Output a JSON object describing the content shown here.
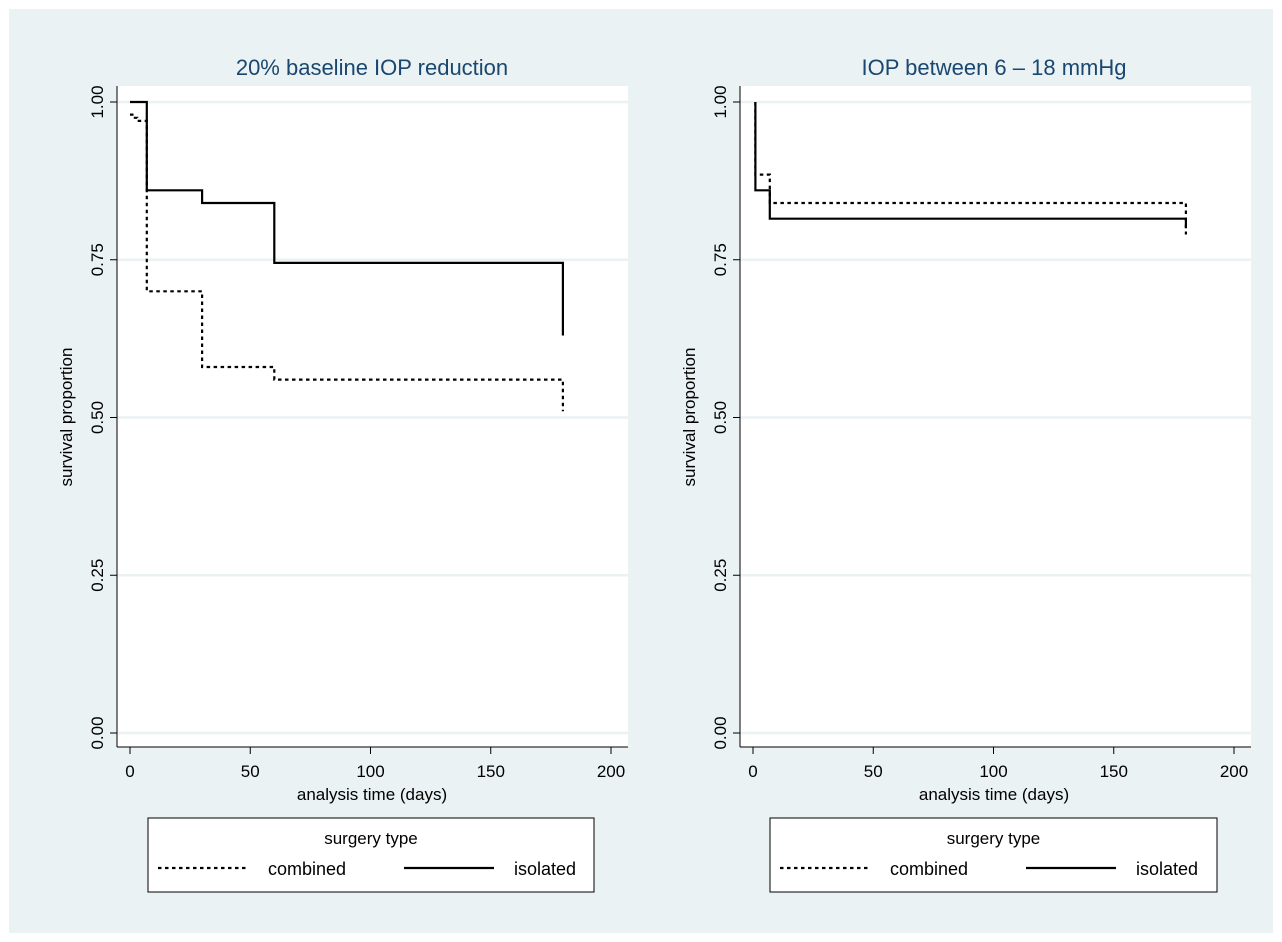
{
  "chart_data": [
    {
      "type": "line",
      "title": "20% baseline IOP reduction",
      "xlabel": "analysis time (days)",
      "ylabel": "survival proportion",
      "xlim": [
        0,
        200
      ],
      "ylim": [
        0,
        1
      ],
      "xticks": [
        0,
        50,
        100,
        150,
        200
      ],
      "yticks": [
        0,
        0.25,
        0.5,
        0.75,
        1
      ],
      "ytick_labels": [
        "0.00",
        "0.25",
        "0.50",
        "0.75",
        "1.00"
      ],
      "grid": true,
      "step": true,
      "legend": {
        "title": "surgery type",
        "position": "bottom"
      },
      "series": [
        {
          "name": "combined",
          "line_style": "dotted",
          "x": [
            0,
            1,
            1,
            3,
            3,
            7,
            7,
            30,
            30,
            60,
            60,
            180,
            180
          ],
          "y": [
            0.98,
            0.98,
            0.975,
            0.975,
            0.97,
            0.97,
            0.7,
            0.7,
            0.58,
            0.58,
            0.56,
            0.56,
            0.51
          ]
        },
        {
          "name": "isolated",
          "line_style": "solid",
          "x": [
            0,
            7,
            7,
            30,
            30,
            60,
            60,
            180,
            180
          ],
          "y": [
            1.0,
            1.0,
            0.86,
            0.86,
            0.84,
            0.84,
            0.745,
            0.745,
            0.63
          ]
        }
      ]
    },
    {
      "type": "line",
      "title": "IOP between 6 – 18 mmHg",
      "xlabel": "analysis time (days)",
      "ylabel": "survival proportion",
      "xlim": [
        0,
        200
      ],
      "ylim": [
        0,
        1
      ],
      "xticks": [
        0,
        50,
        100,
        150,
        200
      ],
      "yticks": [
        0,
        0.25,
        0.5,
        0.75,
        1
      ],
      "ytick_labels": [
        "0.00",
        "0.25",
        "0.50",
        "0.75",
        "1.00"
      ],
      "grid": true,
      "step": true,
      "legend": {
        "title": "surgery type",
        "position": "bottom"
      },
      "series": [
        {
          "name": "combined",
          "line_style": "dotted",
          "x": [
            1,
            1,
            7,
            7,
            180,
            180
          ],
          "y": [
            1.0,
            0.885,
            0.885,
            0.84,
            0.84,
            0.79
          ]
        },
        {
          "name": "isolated",
          "line_style": "solid",
          "x": [
            1,
            1,
            7,
            7,
            180,
            180
          ],
          "y": [
            1.0,
            0.86,
            0.86,
            0.815,
            0.815,
            0.8
          ]
        }
      ]
    }
  ],
  "colors": {
    "background": "#eaf2f3",
    "plot_background": "#ffffff",
    "grid": "#eaf2f3",
    "title": "#1a476f",
    "line": "#000000"
  }
}
